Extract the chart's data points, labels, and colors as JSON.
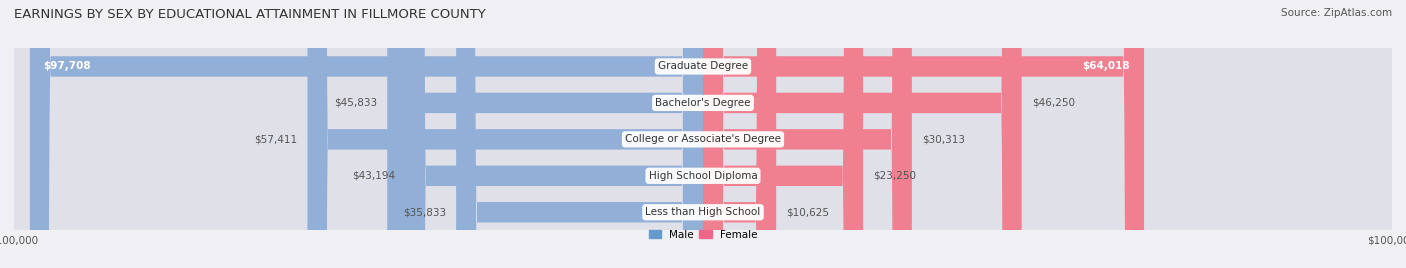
{
  "title": "EARNINGS BY SEX BY EDUCATIONAL ATTAINMENT IN FILLMORE COUNTY",
  "source": "Source: ZipAtlas.com",
  "categories": [
    "Less than High School",
    "High School Diploma",
    "College or Associate's Degree",
    "Bachelor's Degree",
    "Graduate Degree"
  ],
  "male_values": [
    35833,
    43194,
    57411,
    45833,
    97708
  ],
  "female_values": [
    10625,
    23250,
    30313,
    46250,
    64018
  ],
  "male_labels": [
    "$35,833",
    "$43,194",
    "$57,411",
    "$45,833",
    "$97,708"
  ],
  "female_labels": [
    "$10,625",
    "$23,250",
    "$30,313",
    "$46,250",
    "$64,018"
  ],
  "male_color": "#92afd7",
  "female_color": "#f08090",
  "male_color_legend": "#6699cc",
  "female_color_legend": "#ee6688",
  "axis_max": 100000,
  "bg_color": "#f0f0f4",
  "bar_bg_color": "#e0e0e8",
  "title_fontsize": 9.5,
  "label_fontsize": 7.5,
  "tick_fontsize": 7.5,
  "source_fontsize": 7.5,
  "inside_threshold": 60000
}
